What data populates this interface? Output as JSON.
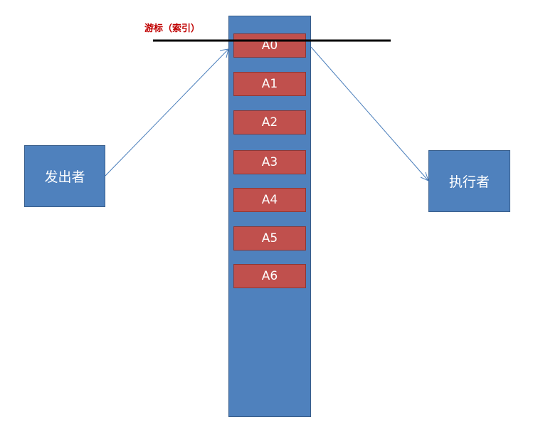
{
  "cursor_label": "游标（索引）",
  "sender_label": "发出者",
  "executor_label": "执行者",
  "slots": [
    "A0",
    "A1",
    "A2",
    "A3",
    "A4",
    "A5",
    "A6"
  ],
  "colors": {
    "box_fill": "#4f81bd",
    "box_border": "#385d8a",
    "slot_fill": "#c0504d",
    "slot_border": "#8c3836",
    "cursor_text": "#c00000",
    "arrow": "#4a7ebb",
    "cursor_line": "#000000"
  }
}
